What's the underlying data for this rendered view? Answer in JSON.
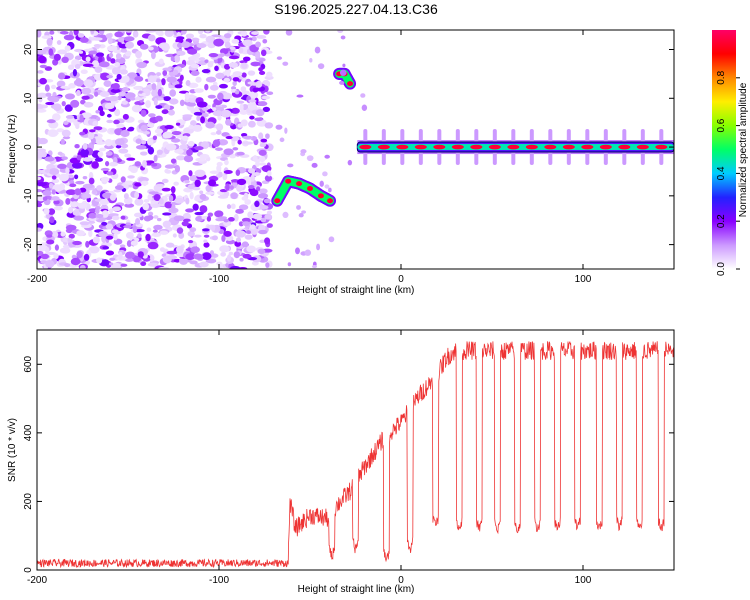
{
  "title": "S196.2025.227.04.13.C36",
  "chart_data": [
    {
      "type": "heatmap",
      "xlabel": "Height of straight line (km)",
      "ylabel": "Frequency (Hz)",
      "xlim": [
        -200,
        150
      ],
      "ylim": [
        -25,
        24
      ],
      "xticks": [
        -200,
        -100,
        0,
        100
      ],
      "yticks": [
        -20,
        -10,
        0,
        10,
        20
      ],
      "colorbar": {
        "label": "Normalized spectral amplitude",
        "range": [
          0,
          1
        ],
        "ticks": [
          "0.0",
          "0.2",
          "0.4",
          "0.6",
          "0.8"
        ],
        "colors": [
          "#ffffff",
          "#cc99ff",
          "#8800ff",
          "#2222ff",
          "#00ccff",
          "#00ff66",
          "#88ff00",
          "#ffee00",
          "#ff8800",
          "#ff0000",
          "#ff0066"
        ]
      },
      "features": [
        {
          "x_range": [
            -200,
            -72
          ],
          "freq_range": [
            -25,
            24
          ],
          "amplitude": 0.1,
          "kind": "noise"
        },
        {
          "x": [
            -68,
            -62,
            -56,
            -50,
            -44,
            -39
          ],
          "freq": [
            -11,
            -7,
            -7.5,
            -8.5,
            -10,
            -11
          ],
          "amplitude": 0.95
        },
        {
          "x": [
            -34,
            -31,
            -28
          ],
          "freq": [
            15,
            15,
            13
          ],
          "amplitude": 0.95
        },
        {
          "x_range": [
            -24,
            150
          ],
          "freq": 0,
          "amplitude": 0.95
        }
      ]
    },
    {
      "type": "line",
      "xlabel": "Height of straight line (km)",
      "ylabel": "SNR (10 * v/v)",
      "xlim": [
        -200,
        150
      ],
      "ylim": [
        0,
        700
      ],
      "xticks": [
        -200,
        -100,
        0,
        100
      ],
      "yticks": [
        0,
        200,
        400,
        600
      ],
      "color": "#ee3333",
      "anchors": [
        [
          -200,
          20
        ],
        [
          -62,
          20
        ],
        [
          -61,
          200
        ],
        [
          -58,
          120
        ],
        [
          -50,
          160
        ],
        [
          -40,
          150
        ],
        [
          -35,
          190
        ],
        [
          -28,
          230
        ],
        [
          -20,
          300
        ],
        [
          -10,
          380
        ],
        [
          0,
          430
        ],
        [
          10,
          510
        ],
        [
          20,
          570
        ],
        [
          25,
          620
        ],
        [
          30,
          640
        ],
        [
          150,
          640
        ]
      ],
      "dropouts": [
        {
          "x": -38,
          "y": 40
        },
        {
          "x": -25,
          "y": 60
        },
        {
          "x": -8,
          "y": 30
        },
        {
          "x": 5,
          "y": 60
        },
        {
          "x": 19,
          "y": 130
        },
        {
          "x": 32,
          "y": 120
        },
        {
          "x": 43,
          "y": 120
        },
        {
          "x": 53,
          "y": 115
        },
        {
          "x": 64,
          "y": 115
        },
        {
          "x": 75,
          "y": 120
        },
        {
          "x": 86,
          "y": 120
        },
        {
          "x": 97,
          "y": 120
        },
        {
          "x": 109,
          "y": 120
        },
        {
          "x": 120,
          "y": 125
        },
        {
          "x": 131,
          "y": 120
        },
        {
          "x": 143,
          "y": 120
        }
      ]
    }
  ]
}
